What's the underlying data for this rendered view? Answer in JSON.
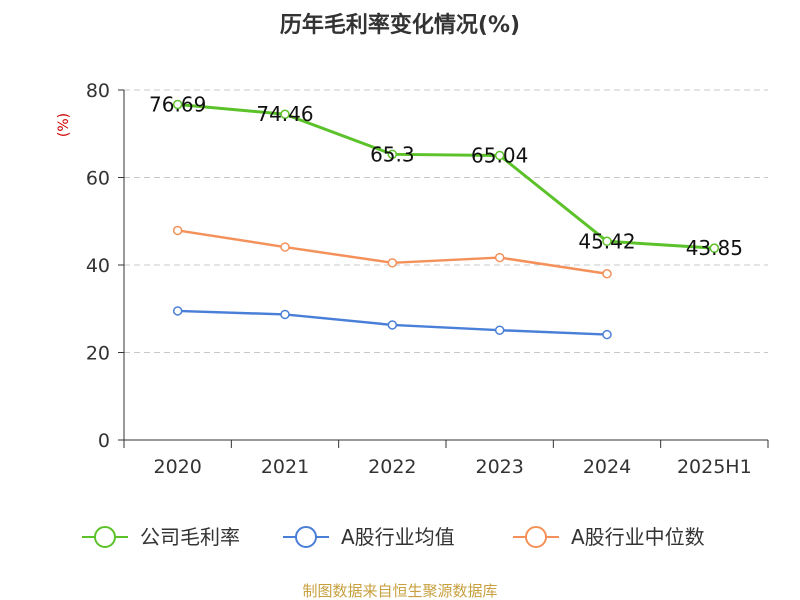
{
  "chart_data": {
    "type": "line",
    "title": "历年毛利率变化情况(%)",
    "ylabel": "(%)",
    "xlabel": "",
    "categories": [
      "2020",
      "2021",
      "2022",
      "2023",
      "2024",
      "2025H1"
    ],
    "ylim": [
      0,
      80
    ],
    "yticks": [
      0,
      20,
      40,
      60,
      80
    ],
    "grid": true,
    "legend_position": "bottom",
    "series": [
      {
        "name": "公司毛利率",
        "color": "#5cc22a",
        "values": [
          76.69,
          74.46,
          65.3,
          65.04,
          45.42,
          43.85
        ],
        "labels": [
          "76.69",
          "74.46",
          "65.3",
          "65.04",
          "45.42",
          "43.85"
        ]
      },
      {
        "name": "A股行业均值",
        "color": "#4a7fd8",
        "values": [
          29.5,
          28.7,
          26.3,
          25.1,
          24.1,
          null
        ],
        "labels": []
      },
      {
        "name": "A股行业中位数",
        "color": "#f4915a",
        "values": [
          47.9,
          44.1,
          40.5,
          41.7,
          38.0,
          null
        ],
        "labels": []
      }
    ]
  },
  "source": "制图数据来自恒生聚源数据库"
}
